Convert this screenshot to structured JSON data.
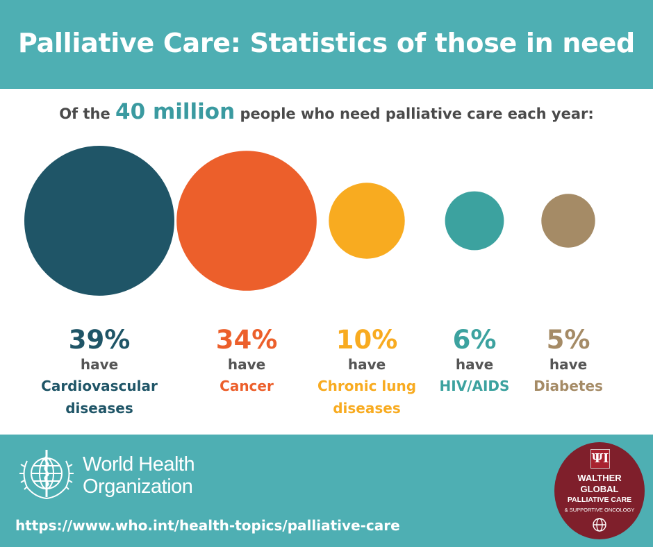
{
  "header": {
    "title": "Palliative Care: Statistics of those in need",
    "subtitle_prefix": "Of the",
    "subtitle_highlight": "40 million",
    "subtitle_suffix": "people who need palliative care each year:"
  },
  "chart_data": {
    "type": "bubble",
    "unit": "%",
    "categories": [
      {
        "value": 39,
        "label": "39%",
        "line1": "have",
        "line2": "Cardiovascular",
        "line3": "diseases",
        "color": "#1f5567"
      },
      {
        "value": 34,
        "label": "34%",
        "line1": "have",
        "line2": "Cancer",
        "line3": "",
        "color": "#ec5f2b"
      },
      {
        "value": 10,
        "label": "10%",
        "line1": "have",
        "line2": "Chronic lung",
        "line3": "diseases",
        "color": "#f8ab20"
      },
      {
        "value": 6,
        "label": "6%",
        "line1": "have",
        "line2": "HIV/AIDS",
        "line3": "",
        "color": "#3ca29f"
      },
      {
        "value": 5,
        "label": "5%",
        "line1": "have",
        "line2": "Diabetes",
        "line3": "",
        "color": "#a58b66"
      }
    ]
  },
  "footer": {
    "org_line1": "World Health",
    "org_line2": "Organization",
    "url": "https://www.who.int/health-topics/palliative-care",
    "badge": {
      "emblem": "ΨΙ",
      "line1": "WALTHER",
      "line2": "GLOBAL",
      "line3": "PALLIATIVE CARE",
      "line4": "& SUPPORTIVE ONCOLOGY"
    }
  },
  "colors": {
    "teal_band": "#4eafb3",
    "highlight": "#3a9aa0",
    "badge": "#7f1f2b"
  },
  "icons": [
    "who-emblem-icon",
    "iu-trident-icon",
    "globe-icon"
  ]
}
